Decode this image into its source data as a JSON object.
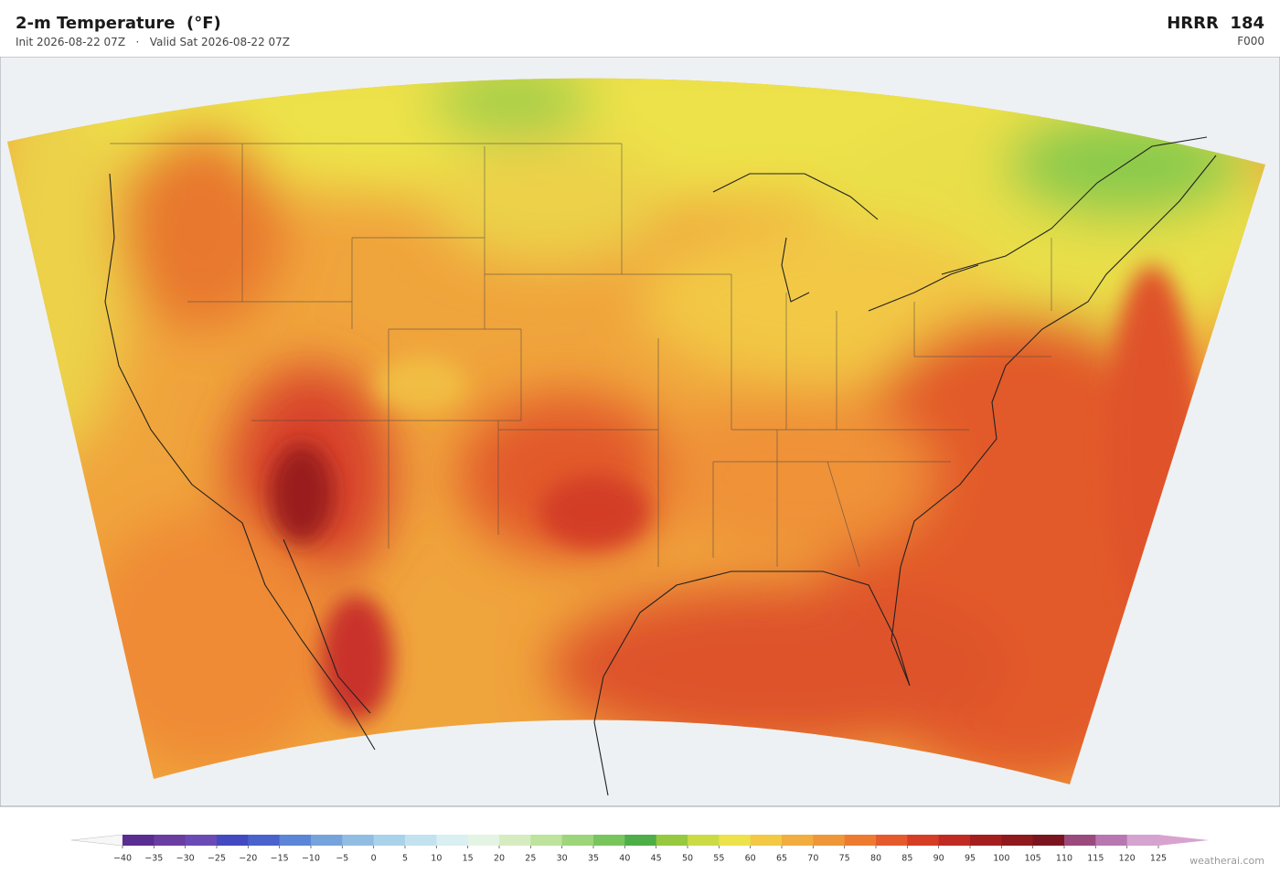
{
  "header": {
    "title": "2-m Temperature  (°F)",
    "subtitle": "Init 2026-08-22 07Z   ·   Valid Sat 2026-08-22 07Z",
    "model": "HRRR  184",
    "forecast_hour": "F000"
  },
  "colorbar": {
    "ticks": [
      {
        "value": -40,
        "label": "−40"
      },
      {
        "value": -35,
        "label": "−35"
      },
      {
        "value": -30,
        "label": "−30"
      },
      {
        "value": -25,
        "label": "−25"
      },
      {
        "value": -20,
        "label": "−20"
      },
      {
        "value": -15,
        "label": "−15"
      },
      {
        "value": -10,
        "label": "−10"
      },
      {
        "value": -5,
        "label": "−5"
      },
      0,
      5,
      10,
      15,
      20,
      25,
      30,
      35,
      40,
      45,
      50,
      55,
      60,
      65,
      70,
      75,
      80,
      85,
      90,
      95,
      100,
      105,
      110,
      115,
      120,
      125
    ],
    "colors": [
      "#5a2d91",
      "#6a3da0",
      "#6a4bb5",
      "#4349c0",
      "#4a62cc",
      "#5b85d6",
      "#77a3dc",
      "#92bde3",
      "#a9d3ea",
      "#c2e2ef",
      "#d9eff2",
      "#e4f4e4",
      "#d5ecc0",
      "#bde39c",
      "#9dd67a",
      "#79c55d",
      "#4eae48",
      "#96c840",
      "#cadb45",
      "#ede24a",
      "#f2c845",
      "#f1ad3d",
      "#ef9638",
      "#ec7b31",
      "#e55a2c",
      "#d63d25",
      "#bf2b22",
      "#a51e1e",
      "#8e1a1d",
      "#7a1520",
      "#9a4a7c",
      "#b877b0",
      "#d5a3cf"
    ],
    "under_color": "#f7f7f7",
    "over_color": "#d8a3cf"
  },
  "credit": "weatherai.com"
}
